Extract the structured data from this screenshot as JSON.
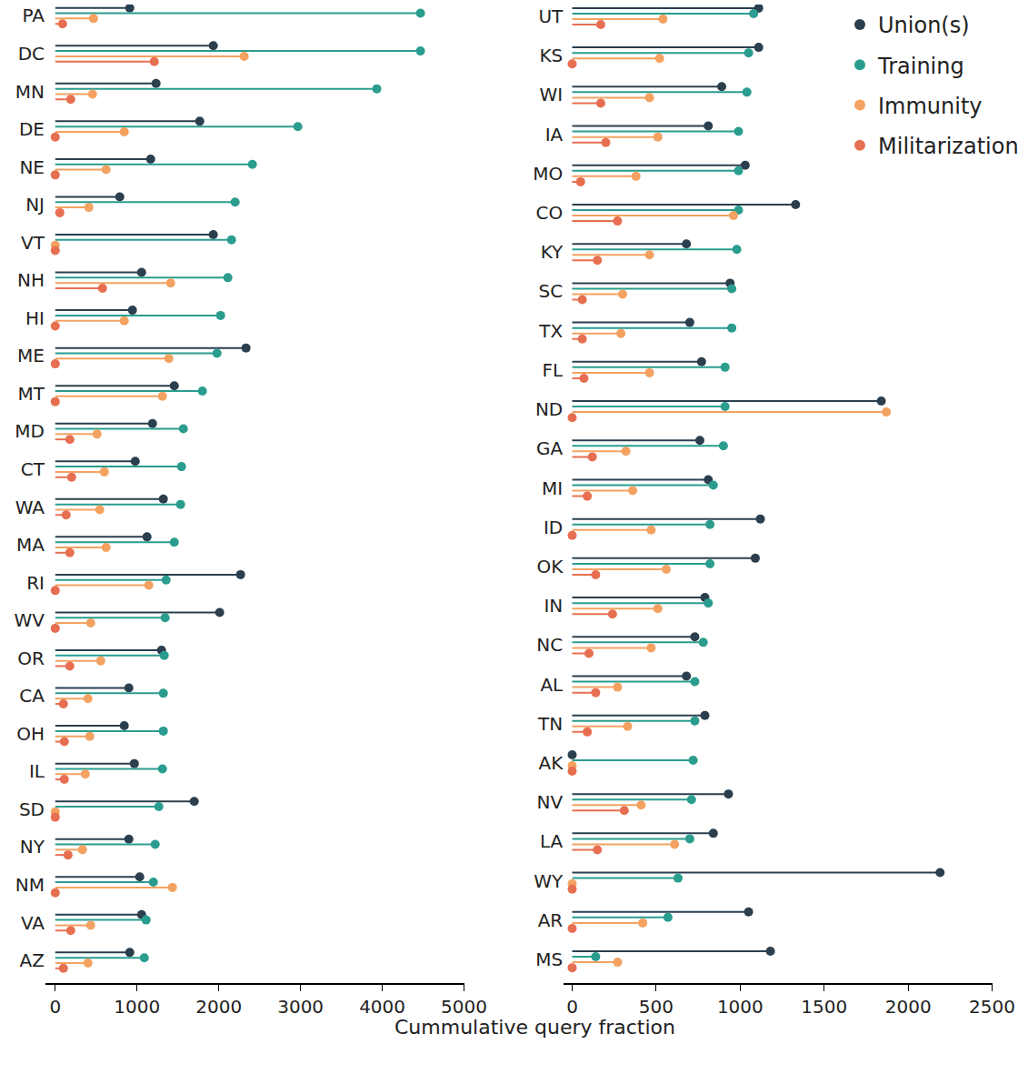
{
  "chart_data": [
    {
      "type": "lollipop",
      "orientation": "horizontal",
      "xlabel": "Cummulative query fraction",
      "legend": "upper right",
      "categories": [
        "PA",
        "DC",
        "MN",
        "DE",
        "NE",
        "NJ",
        "VT",
        "NH",
        "HI",
        "ME",
        "MT",
        "MD",
        "CT",
        "WA",
        "MA",
        "RI",
        "WV",
        "OR",
        "CA",
        "OH",
        "IL",
        "SD",
        "NY",
        "NM",
        "VA",
        "AZ"
      ],
      "xlim": [
        -120,
        5000
      ],
      "xticks": [
        0,
        1000,
        2000,
        3000,
        4000,
        5000
      ],
      "series": [
        {
          "name": "Union(s)",
          "color": "#2b3f4e",
          "values": [
            911,
            1933,
            1233,
            1767,
            1167,
            789,
            1933,
            1056,
            944,
            2333,
            1456,
            1189,
            978,
            1322,
            1122,
            2267,
            2011,
            1300,
            900,
            844,
            967,
            1700,
            900,
            1033,
            1056,
            911
          ]
        },
        {
          "name": "Training",
          "color": "#2a9d8f",
          "values": [
            4467,
            4467,
            3933,
            2967,
            2411,
            2200,
            2156,
            2111,
            2022,
            1978,
            1800,
            1567,
            1544,
            1533,
            1456,
            1356,
            1344,
            1333,
            1322,
            1322,
            1311,
            1267,
            1222,
            1200,
            1111,
            1089
          ]
        },
        {
          "name": "Immunity",
          "color": "#f4a261",
          "values": [
            467,
            2311,
            456,
            844,
            622,
            411,
            0,
            1411,
            844,
            1389,
            1311,
            511,
            600,
            544,
            622,
            1144,
            433,
            556,
            400,
            422,
            367,
            0,
            333,
            1433,
            433,
            400
          ]
        },
        {
          "name": "Militarization",
          "color": "#e76f51",
          "values": [
            89,
            1211,
            189,
            0,
            0,
            56,
            0,
            578,
            0,
            0,
            0,
            178,
            200,
            133,
            178,
            0,
            0,
            178,
            100,
            111,
            111,
            0,
            156,
            0,
            189,
            100
          ]
        }
      ]
    },
    {
      "type": "lollipop",
      "orientation": "horizontal",
      "categories": [
        "UT",
        "KS",
        "WI",
        "IA",
        "MO",
        "CO",
        "KY",
        "SC",
        "TX",
        "FL",
        "ND",
        "GA",
        "MI",
        "ID",
        "OK",
        "IN",
        "NC",
        "AL",
        "TN",
        "AK",
        "NV",
        "LA",
        "WY",
        "AR",
        "MS"
      ],
      "xlim": [
        -50,
        2500
      ],
      "xticks": [
        0,
        500,
        1000,
        1500,
        2000,
        2500
      ],
      "series": [
        {
          "name": "Union(s)",
          "color": "#2b3f4e",
          "values": [
            1110,
            1110,
            890,
            810,
            1030,
            1330,
            680,
            940,
            700,
            770,
            1840,
            760,
            810,
            1120,
            1090,
            790,
            730,
            680,
            790,
            0,
            930,
            840,
            2190,
            1050,
            1180
          ]
        },
        {
          "name": "Training",
          "color": "#2a9d8f",
          "values": [
            1080,
            1050,
            1040,
            990,
            990,
            990,
            980,
            950,
            950,
            910,
            910,
            900,
            840,
            820,
            820,
            810,
            780,
            730,
            730,
            720,
            710,
            700,
            630,
            570,
            140
          ]
        },
        {
          "name": "Immunity",
          "color": "#f4a261",
          "values": [
            540,
            520,
            460,
            510,
            380,
            960,
            460,
            300,
            290,
            460,
            1870,
            320,
            360,
            470,
            560,
            510,
            470,
            270,
            330,
            0,
            410,
            610,
            0,
            420,
            270
          ]
        },
        {
          "name": "Militarization",
          "color": "#e76f51",
          "values": [
            170,
            0,
            170,
            200,
            50,
            270,
            150,
            60,
            60,
            70,
            0,
            120,
            90,
            0,
            140,
            240,
            100,
            140,
            90,
            0,
            310,
            150,
            0,
            0,
            0
          ]
        }
      ]
    }
  ]
}
